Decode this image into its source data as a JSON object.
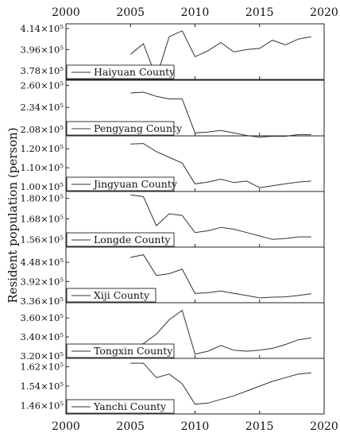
{
  "chart_data": {
    "type": "line",
    "ylabel": "Resident population (person)",
    "xlim": [
      2000,
      2020
    ],
    "x_ticks": [
      "2000",
      "2005",
      "2010",
      "2015",
      "2020"
    ],
    "x_tick_values": [
      2000,
      2005,
      2010,
      2015,
      2020
    ],
    "grid": false,
    "legend_placement": "bottom-left",
    "x": [
      2005,
      2006,
      2007,
      2008,
      2009,
      2010,
      2011,
      2012,
      2013,
      2014,
      2015,
      2016,
      2017,
      2018,
      2019
    ],
    "panels": [
      {
        "name": "Haiyuan County",
        "ylim": [
          3.705,
          4.18
        ],
        "y_ticks": [
          3.78,
          3.96,
          4.14
        ],
        "y_tick_labels": [
          "3.78×10⁵",
          "3.96×10⁵",
          "4.14×10⁵"
        ],
        "values": [
          3.92,
          4.01,
          3.72,
          4.07,
          4.12,
          3.9,
          3.95,
          4.02,
          3.94,
          3.96,
          3.97,
          4.04,
          4.0,
          4.05,
          4.07
        ]
      },
      {
        "name": "Pengyang County",
        "ylim": [
          2.005,
          2.66
        ],
        "y_ticks": [
          2.08,
          2.34,
          2.6
        ],
        "y_tick_labels": [
          "2.08×10⁵",
          "2.34×10⁵",
          "2.60×10⁵"
        ],
        "values": [
          2.51,
          2.52,
          2.47,
          2.44,
          2.44,
          2.04,
          2.05,
          2.07,
          2.04,
          2.01,
          1.99,
          2.0,
          2.0,
          2.02,
          2.02
        ]
      },
      {
        "name": "Jingyuan County",
        "ylim": [
          0.975,
          1.268
        ],
        "y_ticks": [
          1.0,
          1.1,
          1.2
        ],
        "y_tick_labels": [
          "1.00×10⁵",
          "1.10×10⁵",
          "1.20×10⁵"
        ],
        "values": [
          1.225,
          1.228,
          1.185,
          1.155,
          1.125,
          1.015,
          1.025,
          1.04,
          1.022,
          1.03,
          0.995,
          1.005,
          1.015,
          1.025,
          1.03
        ]
      },
      {
        "name": "Longde County",
        "ylim": [
          1.515,
          1.84
        ],
        "y_ticks": [
          1.56,
          1.68,
          1.8
        ],
        "y_tick_labels": [
          "1.56×10⁵",
          "1.68×10⁵",
          "1.80×10⁵"
        ],
        "values": [
          1.82,
          1.81,
          1.64,
          1.71,
          1.7,
          1.6,
          1.61,
          1.63,
          1.62,
          1.6,
          1.58,
          1.56,
          1.565,
          1.575,
          1.575
        ]
      },
      {
        "name": "Xiji County",
        "ylim": [
          3.31,
          4.92
        ],
        "y_ticks": [
          3.36,
          3.92,
          4.48
        ],
        "y_tick_labels": [
          "3.36×10⁵",
          "3.92×10⁵",
          "4.48×10⁵"
        ],
        "values": [
          4.62,
          4.7,
          4.1,
          4.15,
          4.28,
          3.58,
          3.6,
          3.65,
          3.58,
          3.52,
          3.45,
          3.47,
          3.48,
          3.52,
          3.57
        ]
      },
      {
        "name": "Tongxin County",
        "ylim": [
          3.175,
          3.76
        ],
        "y_ticks": [
          3.2,
          3.4,
          3.6
        ],
        "y_tick_labels": [
          "3.20×10⁵",
          "3.40×10⁵",
          "3.60×10⁵"
        ],
        "values": [
          3.3,
          3.33,
          3.43,
          3.58,
          3.68,
          3.22,
          3.25,
          3.31,
          3.26,
          3.25,
          3.26,
          3.28,
          3.32,
          3.37,
          3.39
        ]
      },
      {
        "name": "Yanchi County",
        "ylim": [
          1.425,
          1.655
        ],
        "y_ticks": [
          1.46,
          1.54,
          1.62
        ],
        "y_tick_labels": [
          "1.46×10⁵",
          "1.54×10⁵",
          "1.62×10⁵"
        ],
        "values": [
          1.635,
          1.635,
          1.575,
          1.59,
          1.55,
          1.465,
          1.47,
          1.485,
          1.5,
          1.52,
          1.54,
          1.56,
          1.575,
          1.59,
          1.595
        ]
      }
    ]
  }
}
